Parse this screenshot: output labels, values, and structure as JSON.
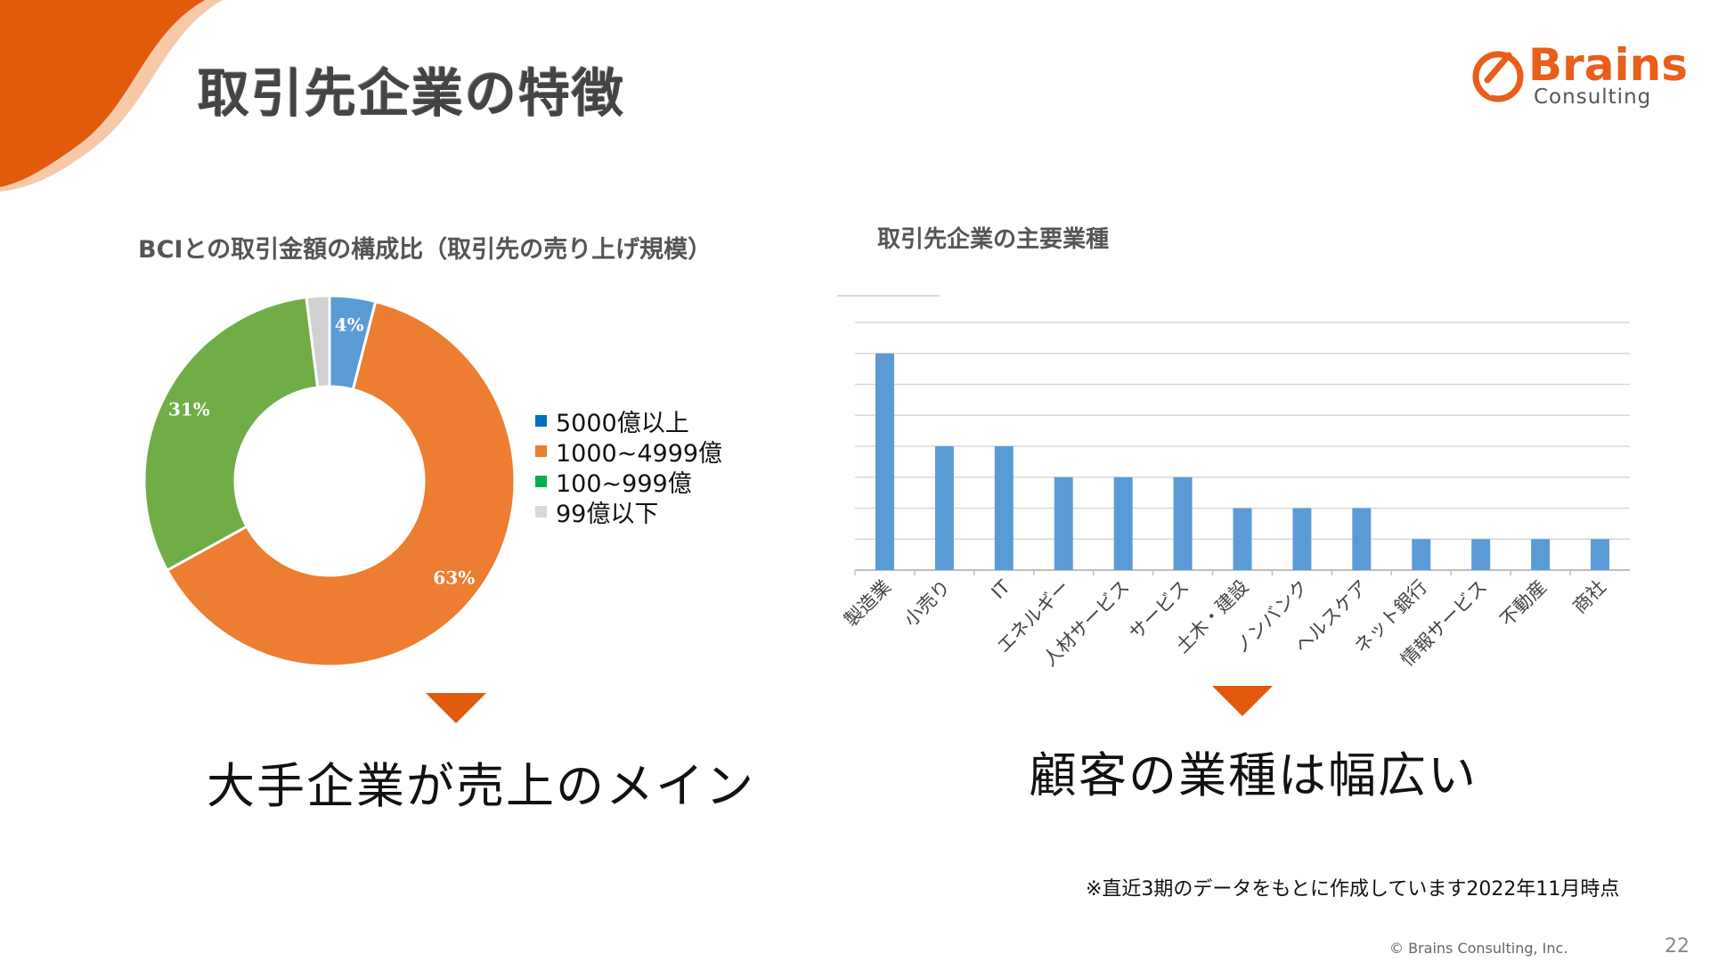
{
  "slide": {
    "title": "取引先企業の特徴",
    "logo": {
      "word": "Brains",
      "sub": "Consulting"
    },
    "footnote": "※直近3期のデータをもとに作成しています2022年11月時点",
    "copyright": "© Brains Consulting, Inc.",
    "page_number": "22"
  },
  "donut": {
    "title": "BCIとの取引金額の構成比（取引先の売り上げ規模）",
    "takeaway": "大手企業が売上のメイン"
  },
  "bar": {
    "title": "取引先企業の主要業種",
    "takeaway": "顧客の業種は幅広い"
  },
  "colors": {
    "accent": "#e05a0e",
    "blue": "#5b9bd5",
    "orange": "#ed7d31",
    "green": "#70ad47",
    "gray": "#d0d0d0"
  },
  "chart_data": [
    {
      "type": "pie",
      "title": "BCIとの取引金額の構成比（取引先の売り上げ規模）",
      "donut": true,
      "series": [
        {
          "name": "5000億以上",
          "value": 4,
          "label": "4%",
          "color": "#5b9bd5",
          "legend_color": "#0070c0"
        },
        {
          "name": "1000~4999億",
          "value": 63,
          "label": "63%",
          "color": "#ed7d31",
          "legend_color": "#ed7d31"
        },
        {
          "name": "100~999億",
          "value": 31,
          "label": "31%",
          "color": "#70ad47",
          "legend_color": "#00b050"
        },
        {
          "name": "99億以下",
          "value": 2,
          "label": "",
          "color": "#d0d0d0",
          "legend_color": "#d9d9d9"
        }
      ],
      "legend": "right"
    },
    {
      "type": "bar",
      "title": "取引先企業の主要業種",
      "categories": [
        "製造業",
        "小売り",
        "IT",
        "エネルギー",
        "人材サービス",
        "サービス",
        "土木・建設",
        "ノンバンク",
        "ヘルスケア",
        "ネット銀行",
        "情報サービス",
        "不動産",
        "商社"
      ],
      "values": [
        7,
        4,
        4,
        3,
        3,
        3,
        2,
        2,
        2,
        1,
        1,
        1,
        1
      ],
      "ylim": [
        0,
        8
      ],
      "grid": true,
      "color": "#5b9bd5"
    }
  ]
}
